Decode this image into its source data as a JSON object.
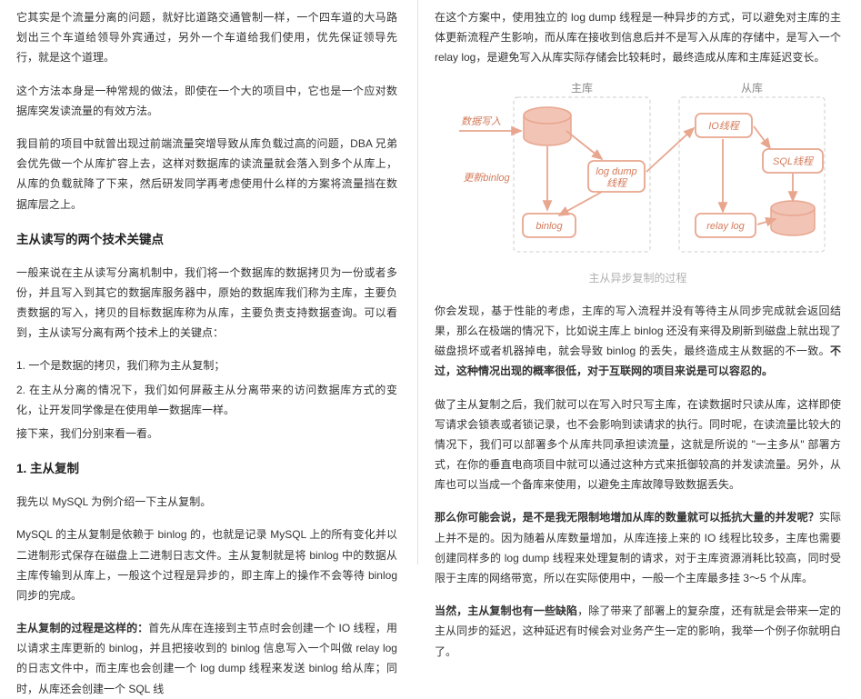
{
  "left": {
    "p1": "它其实是个流量分离的问题，就好比道路交通管制一样，一个四车道的大马路划出三个车道给领导外宾通过，另外一个车道给我们使用，优先保证领导先行，就是这个道理。",
    "p2": "这个方法本身是一种常规的做法，即使在一个大的项目中，它也是一个应对数据库突发读流量的有效方法。",
    "p3": "我目前的项目中就曾出现过前端流量突增导致从库负载过高的问题，DBA 兄弟会优先做一个从库扩容上去，这样对数据库的读流量就会落入到多个从库上，从库的负载就降了下来，然后研发同学再考虑使用什么样的方案将流量挡在数据库层之上。",
    "h1": "主从读写的两个技术关键点",
    "p4": "一般来说在主从读写分离机制中，我们将一个数据库的数据拷贝为一份或者多份，并且写入到其它的数据库服务器中，原始的数据库我们称为主库，主要负责数据的写入，拷贝的目标数据库称为从库，主要负责支持数据查询。可以看到，主从读写分离有两个技术上的关键点：",
    "li1": "1. 一个是数据的拷贝，我们称为主从复制；",
    "li2": "2. 在主从分离的情况下，我们如何屏蔽主从分离带来的访问数据库方式的变化，让开发同学像是在使用单一数据库一样。",
    "p5": "接下来，我们分别来看一看。",
    "h2": "1. 主从复制",
    "p6": "我先以 MySQL 为例介绍一下主从复制。",
    "p7": "MySQL 的主从复制是依赖于 binlog 的，也就是记录 MySQL 上的所有变化并以二进制形式保存在磁盘上二进制日志文件。主从复制就是将 binlog 中的数据从主库传输到从库上，一般这个过程是异步的，即主库上的操作不会等待 binlog 同步的完成。",
    "p8a": "主从复制的过程是这样的：",
    "p8b": "首先从库在连接到主节点时会创建一个 IO 线程，用以请求主库更新的 binlog，并且把接收到的 binlog 信息写入一个叫做 relay log 的日志文件中，而主库也会创建一个 log dump 线程来发送 binlog 给从库；同时，从库还会创建一个 SQL 线"
  },
  "right": {
    "p1": "在这个方案中，使用独立的 log dump 线程是一种异步的方式，可以避免对主库的主体更新流程产生影响，而从库在接收到信息后并不是写入从库的存储中，是写入一个 relay log，是避免写入从库实际存储会比较耗时，最终造成从库和主库延迟变长。",
    "caption": "主从异步复制的过程",
    "p2a": "你会发现，基于性能的考虑，主库的写入流程并没有等待主从同步完成就会返回结果，那么在极端的情况下，比如说主库上 binlog 还没有来得及刷新到磁盘上就出现了磁盘损坏或者机器掉电，就会导致 binlog 的丢失，最终造成主从数据的不一致。",
    "p2b": "不过，这种情况出现的概率很低，对于互联网的项目来说是可以容忍的。",
    "p3": "做了主从复制之后，我们就可以在写入时只写主库，在读数据时只读从库，这样即使写请求会锁表或者锁记录，也不会影响到读请求的执行。同时呢，在读流量比较大的情况下，我们可以部署多个从库共同承担读流量，这就是所说的 \"一主多从\" 部署方式，在你的垂直电商项目中就可以通过这种方式来抵御较高的并发读流量。另外，从库也可以当成一个备库来使用，以避免主库故障导致数据丢失。",
    "p4a": "那么你可能会说，是不是我无限制地增加从库的数量就可以抵抗大量的并发呢？",
    "p4b": "实际上并不是的。因为随着从库数量增加，从库连接上来的 IO 线程比较多，主库也需要创建同样多的 log dump 线程来处理复制的请求，对于主库资源消耗比较高，同时受限于主库的网络带宽，所以在实际使用中，一般一个主库最多挂 3～5 个从库。",
    "p5a": "当然，主从复制也有一些缺陷",
    "p5b": "，除了带来了部署上的复杂度，还有就是会带来一定的主从同步的延迟，这种延迟有时候会对业务产生一定的影响，我举一个例子你就明白了。"
  },
  "diagram": {
    "masterLabel": "主库",
    "slaveLabel": "从库",
    "writeIn": "数据写入",
    "updateBinlog": "更新binlog",
    "logDump": "log dump\\n线程",
    "binlog": "binlog",
    "ioThread": "IO线程",
    "sqlThread": "SQL线程",
    "relayLog": "relay log",
    "colors": {
      "box": "#e8a68f",
      "boxFill": "#f4d4c8",
      "cylFill": "#f2c4b5",
      "cylStroke": "#e8a68f",
      "arrow": "#e8a68f",
      "text": "#d47a5a",
      "label": "#888888",
      "dashBox": "#cccccc"
    }
  }
}
